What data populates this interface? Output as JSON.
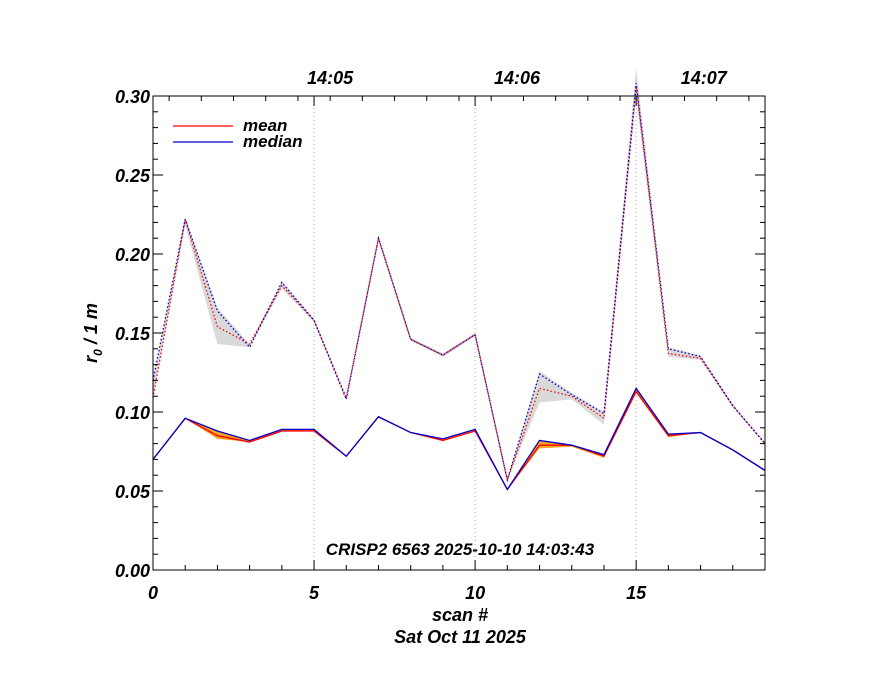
{
  "chart_data": {
    "type": "line",
    "title": "CRISP2 6563 2025-10-10 14:03:43",
    "xlabel": "scan #",
    "xlabel2": "Sat Oct 11 2025",
    "ylabel": "r",
    "ylabel_sub": "0",
    "ylabel_tail": " / 1 m",
    "xlim": [
      0,
      19
    ],
    "ylim": [
      0,
      0.3
    ],
    "x_ticks": [
      0,
      5,
      10,
      15
    ],
    "x_tick_labels": [
      "0",
      "5",
      "10",
      "15"
    ],
    "y_ticks": [
      0,
      0.05,
      0.1,
      0.15,
      0.2,
      0.25,
      0.3
    ],
    "y_tick_labels": [
      "0.00",
      "0.05",
      "0.10",
      "0.15",
      "0.20",
      "0.25",
      "0.30"
    ],
    "top_axis": {
      "labels": [
        "14:05",
        "14:06",
        "14:07"
      ],
      "positions": [
        5,
        10,
        15
      ],
      "label_positions": [
        5.5,
        11.3,
        17.1
      ]
    },
    "legend": {
      "placement": "top-left",
      "entries": [
        {
          "name": "mean",
          "color": "#ff0000"
        },
        {
          "name": "median",
          "color": "#0000cc"
        }
      ]
    },
    "x": [
      0,
      1,
      2,
      3,
      4,
      5,
      6,
      7,
      8,
      9,
      10,
      11,
      12,
      13,
      14,
      15,
      16,
      17,
      18,
      19
    ],
    "series": [
      {
        "name": "mean",
        "style": "solid",
        "color": "#ff0000",
        "values": [
          0.07,
          0.096,
          0.085,
          0.081,
          0.088,
          0.088,
          0.072,
          0.097,
          0.087,
          0.082,
          0.088,
          0.051,
          0.079,
          0.079,
          0.072,
          0.113,
          0.085,
          0.087,
          0.076,
          0.063
        ]
      },
      {
        "name": "median",
        "style": "solid",
        "color": "#0000cc",
        "values": [
          0.07,
          0.096,
          0.088,
          0.082,
          0.089,
          0.089,
          0.072,
          0.097,
          0.087,
          0.083,
          0.089,
          0.051,
          0.082,
          0.079,
          0.073,
          0.115,
          0.086,
          0.087,
          0.076,
          0.063
        ]
      },
      {
        "name": "mean (max)",
        "style": "dotted",
        "color": "#ff0000",
        "values": [
          0.109,
          0.222,
          0.154,
          0.143,
          0.18,
          0.158,
          0.109,
          0.21,
          0.146,
          0.136,
          0.149,
          0.057,
          0.115,
          0.11,
          0.096,
          0.306,
          0.137,
          0.134,
          0.104,
          0.08
        ]
      },
      {
        "name": "median (max)",
        "style": "dotted",
        "color": "#0000cc",
        "values": [
          0.12,
          0.222,
          0.164,
          0.141,
          0.182,
          0.158,
          0.108,
          0.21,
          0.146,
          0.136,
          0.149,
          0.057,
          0.124,
          0.111,
          0.099,
          0.308,
          0.14,
          0.135,
          0.104,
          0.08
        ]
      }
    ],
    "bands": [
      {
        "name": "spread-solid",
        "color": "#f5a623",
        "lower": [
          0.07,
          0.096,
          0.083,
          0.081,
          0.088,
          0.088,
          0.072,
          0.097,
          0.087,
          0.082,
          0.088,
          0.051,
          0.077,
          0.078,
          0.071,
          0.112,
          0.084,
          0.087,
          0.076,
          0.063
        ],
        "upper": [
          0.07,
          0.096,
          0.088,
          0.082,
          0.089,
          0.089,
          0.072,
          0.097,
          0.087,
          0.083,
          0.089,
          0.051,
          0.082,
          0.079,
          0.073,
          0.115,
          0.086,
          0.087,
          0.076,
          0.063
        ]
      },
      {
        "name": "spread-dotted",
        "color": "#d9d9d9",
        "lower": [
          0.109,
          0.218,
          0.143,
          0.141,
          0.178,
          0.157,
          0.108,
          0.209,
          0.145,
          0.135,
          0.148,
          0.057,
          0.106,
          0.108,
          0.092,
          0.3,
          0.135,
          0.133,
          0.103,
          0.08
        ],
        "upper": [
          0.12,
          0.223,
          0.166,
          0.143,
          0.183,
          0.159,
          0.109,
          0.211,
          0.147,
          0.137,
          0.15,
          0.058,
          0.126,
          0.112,
          0.1,
          0.318,
          0.141,
          0.136,
          0.105,
          0.08
        ]
      }
    ]
  }
}
